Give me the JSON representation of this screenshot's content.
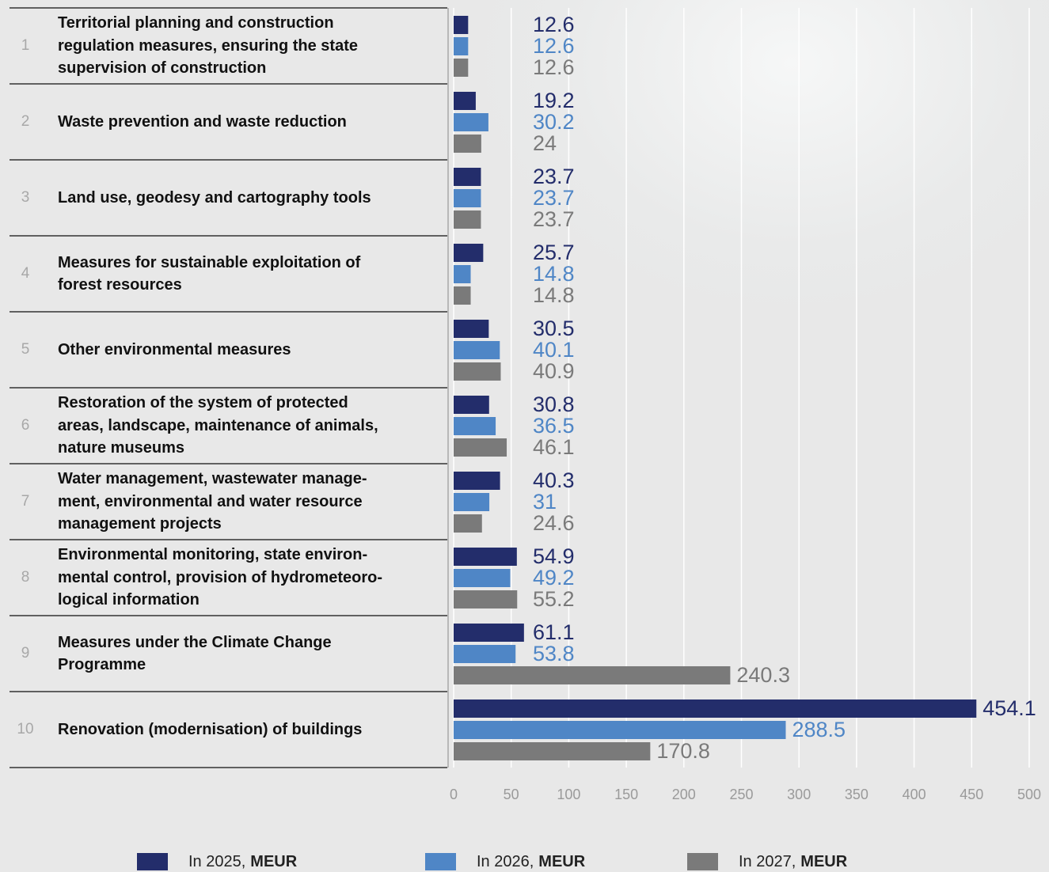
{
  "chart_data": {
    "type": "bar",
    "orientation": "horizontal",
    "category_numbers": [
      1,
      2,
      3,
      4,
      5,
      6,
      7,
      8,
      9,
      10
    ],
    "categories": [
      "Territorial planning and construction\nregulation measures, ensuring the state\nsupervision of construction",
      "Waste prevention and waste reduction",
      "Land use, geodesy and cartography tools",
      "Measures for sustainable exploitation of\nforest resources",
      "Other environmental measures",
      "Restoration of the system of protected\nareas, landscape, maintenance of  animals,\nnature museums",
      "Water management, wastewater manage-\nment, environmental and water resource\nmanagement projects",
      "Environmental monitoring, state environ-\nmental control, provision of hydrometeoro-\nlogical information",
      "Measures under the Climate Change\nProgramme",
      "Renovation (modernisation) of buildings"
    ],
    "unit": "MEUR",
    "series": [
      {
        "name": "In 2025,",
        "color": "#232d6b",
        "values": [
          12.6,
          19.2,
          23.7,
          25.7,
          30.5,
          30.8,
          40.3,
          54.9,
          61.1,
          454.1
        ]
      },
      {
        "name": "In 2026,",
        "color": "#4f86c6",
        "values": [
          12.6,
          30.2,
          23.7,
          14.8,
          40.1,
          36.5,
          31,
          49.2,
          53.8,
          288.5
        ]
      },
      {
        "name": "In 2027,",
        "color": "#7a7a7a",
        "values": [
          12.6,
          24,
          23.7,
          14.8,
          40.9,
          46.1,
          24.6,
          55.2,
          240.3,
          170.8
        ]
      }
    ],
    "xlim": [
      0,
      500
    ],
    "xticks": [
      0,
      50,
      100,
      150,
      200,
      250,
      300,
      350,
      400,
      450,
      500
    ],
    "grid": true
  }
}
